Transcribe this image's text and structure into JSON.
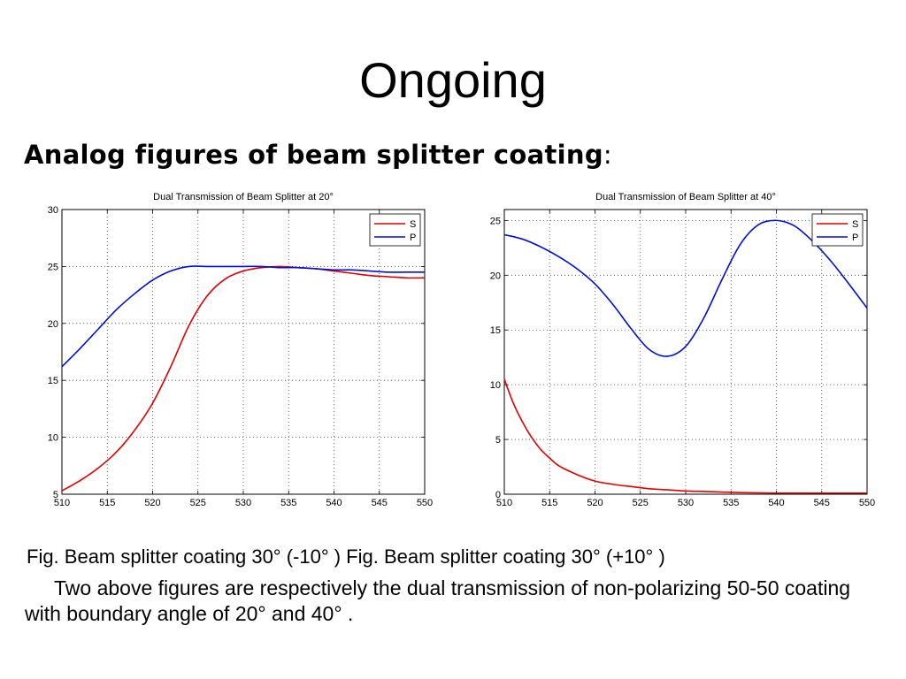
{
  "slide": {
    "title": "Ongoing",
    "subtitle": "Analog figures of beam splitter coating",
    "subtitle_colon": ":",
    "caption_line": "Fig. Beam splitter coating  30°  (-10° ) Fig. Beam splitter coating 30°  (+10° )",
    "caption_body": "Two above figures are respectively the dual transmission of non-polarizing 50-50 coating with boundary angle of 20°  and 40° ."
  },
  "colors": {
    "S": "#e00000",
    "P": "#0010d0"
  },
  "chart_data": [
    {
      "type": "line",
      "title": "Dual Transmission of Beam Splitter at 20°",
      "xlabel": "",
      "ylabel": "",
      "xlim": [
        510,
        550
      ],
      "ylim": [
        5,
        30
      ],
      "xticks": [
        510,
        515,
        520,
        525,
        530,
        535,
        540,
        545,
        550
      ],
      "yticks": [
        5,
        10,
        15,
        20,
        25,
        30
      ],
      "grid": true,
      "legend": "top-right",
      "series": [
        {
          "name": "S",
          "x": [
            510,
            512,
            514,
            516,
            518,
            520,
            522,
            524,
            526,
            528,
            530,
            532,
            534,
            536,
            538,
            540,
            542,
            544,
            546,
            548,
            550
          ],
          "y": [
            5.3,
            6.2,
            7.3,
            8.7,
            10.6,
            13.0,
            16.2,
            19.8,
            22.4,
            23.9,
            24.6,
            24.9,
            25.0,
            24.9,
            24.8,
            24.6,
            24.4,
            24.2,
            24.1,
            24.0,
            24.0
          ]
        },
        {
          "name": "P",
          "x": [
            510,
            512,
            514,
            516,
            518,
            520,
            522,
            524,
            526,
            528,
            530,
            532,
            534,
            536,
            538,
            540,
            542,
            544,
            546,
            548,
            550
          ],
          "y": [
            16.2,
            17.8,
            19.5,
            21.2,
            22.6,
            23.8,
            24.6,
            25.0,
            25.0,
            25.0,
            25.0,
            25.0,
            24.9,
            24.9,
            24.8,
            24.7,
            24.7,
            24.6,
            24.5,
            24.5,
            24.5
          ]
        }
      ]
    },
    {
      "type": "line",
      "title": "Dual Transmission of Beam Splitter at 40°",
      "xlabel": "",
      "ylabel": "",
      "xlim": [
        510,
        550
      ],
      "ylim": [
        0,
        26
      ],
      "xticks": [
        510,
        515,
        520,
        525,
        530,
        535,
        540,
        545,
        550
      ],
      "yticks": [
        0,
        5,
        10,
        15,
        20,
        25
      ],
      "grid": true,
      "legend": "top-right",
      "series": [
        {
          "name": "S",
          "x": [
            510,
            511,
            512,
            513,
            514,
            515,
            516,
            518,
            520,
            522,
            524,
            526,
            528,
            530,
            532,
            534,
            536,
            540,
            545,
            550
          ],
          "y": [
            10.5,
            8.3,
            6.6,
            5.2,
            4.1,
            3.3,
            2.6,
            1.8,
            1.2,
            0.9,
            0.7,
            0.5,
            0.4,
            0.3,
            0.25,
            0.2,
            0.15,
            0.1,
            0.1,
            0.1
          ]
        },
        {
          "name": "P",
          "x": [
            510,
            512,
            514,
            516,
            518,
            520,
            522,
            524,
            526,
            528,
            530,
            532,
            534,
            536,
            538,
            540,
            542,
            544,
            546,
            548,
            550
          ],
          "y": [
            23.7,
            23.3,
            22.6,
            21.7,
            20.6,
            19.2,
            17.3,
            15.1,
            13.2,
            12.6,
            13.5,
            16.1,
            19.6,
            22.8,
            24.6,
            25.0,
            24.5,
            23.1,
            21.3,
            19.2,
            17.0
          ]
        }
      ]
    }
  ]
}
